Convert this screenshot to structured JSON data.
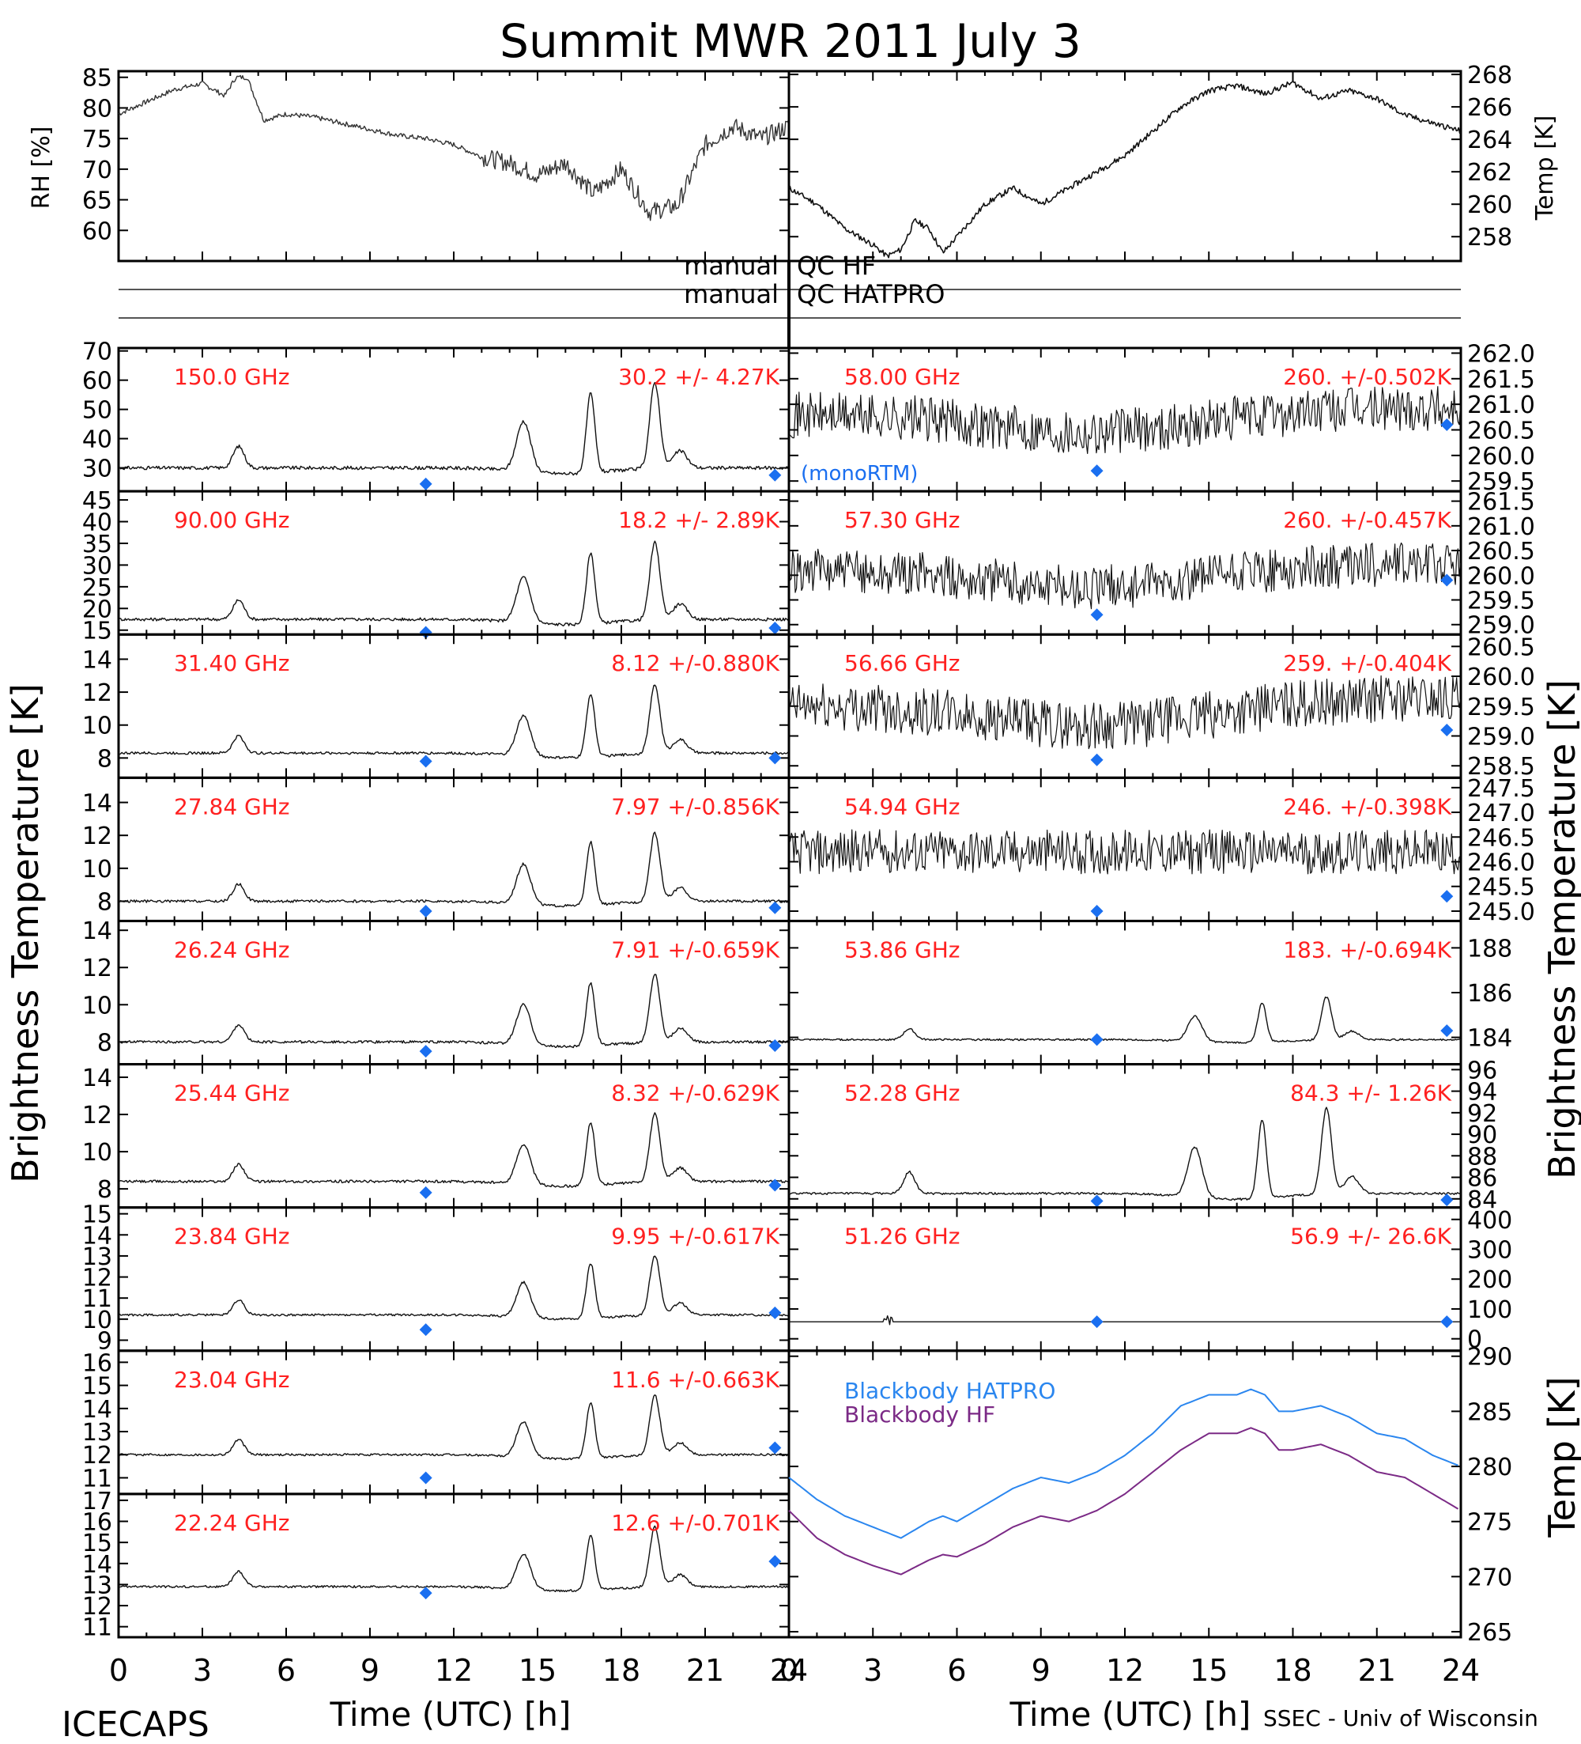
{
  "title": "Summit MWR 2011 July  3",
  "footer": {
    "left": "ICECAPS",
    "right": "SSEC - Univ of Wisconsin"
  },
  "colors": {
    "axis": "#000000",
    "data": "#000000",
    "freq_label": "#ff2020",
    "model_marker": "#1a6ff0",
    "bb_hatpro": "#2a86ef",
    "bb_hf": "#7b2a86"
  },
  "chart_data": [
    {
      "id": "rh",
      "type": "line",
      "ylabel": "RH [%]",
      "ylim": [
        55,
        86
      ],
      "yticks": [
        60,
        65,
        70,
        75,
        80,
        85
      ],
      "x": [
        0,
        1,
        2,
        3,
        3.8,
        4.2,
        4.6,
        5.2,
        6,
        7,
        8,
        9,
        10,
        11,
        12,
        13,
        14,
        15,
        16,
        17,
        18,
        19,
        20,
        21,
        22,
        23,
        24
      ],
      "y": [
        79,
        81,
        83,
        84,
        82,
        85,
        85,
        78,
        79,
        78.5,
        77.5,
        76.5,
        75.5,
        75,
        74,
        72,
        71,
        69,
        71,
        66,
        70,
        63,
        64,
        74,
        77,
        75,
        77
      ]
    },
    {
      "id": "temp_air",
      "type": "line",
      "ylabel": "Temp [K]",
      "ylim": [
        256.5,
        268.2
      ],
      "yticks": [
        258,
        260,
        262,
        264,
        266,
        268
      ],
      "x": [
        0,
        1,
        2,
        3,
        3.5,
        4,
        4.5,
        5,
        5.5,
        6,
        7,
        8,
        9,
        10,
        11,
        12,
        13,
        14,
        15,
        16,
        17,
        18,
        19,
        20,
        21,
        22,
        23,
        24
      ],
      "y": [
        261,
        260,
        258.5,
        257.5,
        256.8,
        257.2,
        259,
        258.5,
        257,
        258,
        260,
        261,
        260,
        261,
        262,
        263,
        264.5,
        266,
        267,
        267.3,
        266.8,
        267.5,
        266.5,
        267,
        266.5,
        265.5,
        265,
        264.5
      ]
    },
    {
      "id": "qc_bars",
      "type": "table",
      "labels": [
        "manual",
        "manual"
      ],
      "values": [
        "QC HF",
        "QC HATPRO"
      ]
    },
    {
      "id": "tb_150",
      "type": "line",
      "freq": "150.0 GHz",
      "stats": "30.2 +/-  4.27K",
      "ylim": [
        22,
        71
      ],
      "yticks": [
        30,
        40,
        50,
        60,
        70
      ],
      "baseline": 30,
      "amplitude": 1.0,
      "noise": 0.08,
      "model": [
        [
          11,
          24.5
        ],
        [
          23.5,
          27.5
        ]
      ],
      "legend_text": "(monoRTM)"
    },
    {
      "id": "tb_90",
      "type": "line",
      "freq": "90.00 GHz",
      "stats": "18.2 +/-  2.89K",
      "ylim": [
        14,
        47
      ],
      "yticks": [
        15,
        20,
        25,
        30,
        35,
        40,
        45
      ],
      "baseline": 17.5,
      "amplitude": 0.9,
      "noise": 0.07,
      "model": [
        [
          11,
          14.5
        ],
        [
          23.5,
          15.5
        ]
      ]
    },
    {
      "id": "tb_31",
      "type": "line",
      "freq": "31.40 GHz",
      "stats": "8.12 +/-0.880K",
      "ylim": [
        6.8,
        15.5
      ],
      "yticks": [
        8,
        10,
        12,
        14
      ],
      "baseline": 8.3,
      "amplitude": 0.8,
      "noise": 0.06,
      "model": [
        [
          11,
          7.8
        ],
        [
          23.5,
          8.0
        ]
      ]
    },
    {
      "id": "tb_27",
      "type": "line",
      "freq": "27.84 GHz",
      "stats": "7.97 +/-0.856K",
      "ylim": [
        6.8,
        15.5
      ],
      "yticks": [
        8,
        10,
        12,
        14
      ],
      "baseline": 8.0,
      "amplitude": 0.8,
      "noise": 0.06,
      "model": [
        [
          11,
          7.4
        ],
        [
          23.5,
          7.6
        ]
      ]
    },
    {
      "id": "tb_26",
      "type": "line",
      "freq": "26.24 GHz",
      "stats": "7.91 +/-0.659K",
      "ylim": [
        6.8,
        14.5
      ],
      "yticks": [
        8,
        10,
        12,
        14
      ],
      "baseline": 8.0,
      "amplitude": 0.8,
      "noise": 0.06,
      "model": [
        [
          11,
          7.5
        ],
        [
          23.5,
          7.8
        ]
      ]
    },
    {
      "id": "tb_25",
      "type": "line",
      "freq": "25.44 GHz",
      "stats": "8.32 +/-0.629K",
      "ylim": [
        7.0,
        14.7
      ],
      "yticks": [
        8,
        10,
        12,
        14
      ],
      "baseline": 8.4,
      "amplitude": 0.8,
      "noise": 0.06,
      "model": [
        [
          11,
          7.8
        ],
        [
          23.5,
          8.2
        ]
      ]
    },
    {
      "id": "tb_23_84",
      "type": "line",
      "freq": "23.84 GHz",
      "stats": "9.95 +/-0.617K",
      "ylim": [
        8.5,
        15.3
      ],
      "yticks": [
        9,
        10,
        11,
        12,
        13,
        14,
        15
      ],
      "baseline": 10.2,
      "amplitude": 0.7,
      "noise": 0.05,
      "model": [
        [
          11,
          9.5
        ],
        [
          23.5,
          10.3
        ]
      ]
    },
    {
      "id": "tb_23_04",
      "type": "line",
      "freq": "23.04 GHz",
      "stats": "11.6 +/-0.663K",
      "ylim": [
        10.3,
        16.5
      ],
      "yticks": [
        11,
        12,
        13,
        14,
        15,
        16
      ],
      "baseline": 12.0,
      "amplitude": 0.7,
      "noise": 0.05,
      "model": [
        [
          11,
          11.0
        ],
        [
          23.5,
          12.3
        ]
      ]
    },
    {
      "id": "tb_22",
      "type": "line",
      "freq": "22.24 GHz",
      "stats": "12.6 +/-0.701K",
      "ylim": [
        10.5,
        17.3
      ],
      "yticks": [
        11,
        12,
        13,
        14,
        15,
        16,
        17
      ],
      "baseline": 12.9,
      "amplitude": 0.7,
      "noise": 0.05,
      "model": [
        [
          11,
          12.6
        ],
        [
          23.5,
          14.1
        ]
      ]
    },
    {
      "id": "tb_58",
      "type": "scatter",
      "freq": "58.00 GHz",
      "stats": "260. +/-0.502K",
      "ylim": [
        259.3,
        262.1
      ],
      "yticks": [
        259.5,
        260.0,
        260.5,
        261.0,
        261.5,
        262.0
      ],
      "baseline": 260.8,
      "trend": "dip",
      "noise": 0.45,
      "model": [
        [
          11,
          259.7
        ],
        [
          23.5,
          260.6
        ]
      ]
    },
    {
      "id": "tb_57_30",
      "type": "scatter",
      "freq": "57.30 GHz",
      "stats": "260. +/-0.457K",
      "ylim": [
        258.8,
        261.7
      ],
      "yticks": [
        259.0,
        259.5,
        260.0,
        260.5,
        261.0,
        261.5
      ],
      "baseline": 260.1,
      "trend": "dip",
      "noise": 0.45,
      "model": [
        [
          11,
          259.2
        ],
        [
          23.5,
          259.9
        ]
      ]
    },
    {
      "id": "tb_56_66",
      "type": "scatter",
      "freq": "56.66 GHz",
      "stats": "259. +/-0.404K",
      "ylim": [
        258.3,
        260.7
      ],
      "yticks": [
        258.5,
        259.0,
        259.5,
        260.0,
        260.5
      ],
      "baseline": 259.5,
      "trend": "dip",
      "noise": 0.4,
      "model": [
        [
          11,
          258.6
        ],
        [
          23.5,
          259.1
        ]
      ]
    },
    {
      "id": "tb_54_94",
      "type": "scatter",
      "freq": "54.94 GHz",
      "stats": "246. +/-0.398K",
      "ylim": [
        244.8,
        247.7
      ],
      "yticks": [
        245.0,
        245.5,
        246.0,
        246.5,
        247.0,
        247.5
      ],
      "baseline": 246.2,
      "trend": "flat",
      "noise": 0.45,
      "model": [
        [
          11,
          245.0
        ],
        [
          23.5,
          245.3
        ]
      ]
    },
    {
      "id": "tb_53_86",
      "type": "line",
      "freq": "53.86 GHz",
      "stats": "183. +/-0.694K",
      "ylim": [
        182.8,
        189.2
      ],
      "yticks": [
        184,
        186,
        188
      ],
      "baseline": 183.9,
      "amplitude": 0.5,
      "noise": 0.04,
      "model": [
        [
          11,
          183.9
        ],
        [
          23.5,
          184.3
        ]
      ]
    },
    {
      "id": "tb_52_28",
      "type": "line",
      "freq": "52.28 GHz",
      "stats": "84.3 +/-  1.26K",
      "ylim": [
        83.2,
        96.5
      ],
      "yticks": [
        84,
        86,
        88,
        90,
        92,
        94,
        96
      ],
      "baseline": 84.5,
      "amplitude": 1.0,
      "noise": 0.05,
      "model": [
        [
          11,
          83.8
        ],
        [
          23.5,
          83.9
        ]
      ]
    },
    {
      "id": "tb_51_26",
      "type": "line",
      "freq": "51.26 GHz",
      "stats": "56.9 +/-  26.6K",
      "ylim": [
        -40,
        440
      ],
      "yticks": [
        0,
        100,
        200,
        300,
        400
      ],
      "baseline": 57,
      "amplitude": 0,
      "noise": 0,
      "model": [
        [
          11,
          57
        ],
        [
          23.5,
          57
        ]
      ]
    },
    {
      "id": "blackbody",
      "type": "line",
      "ylabel": "Temp [K]",
      "ylim": [
        264.5,
        290.5
      ],
      "yticks": [
        265,
        270,
        275,
        280,
        285,
        290
      ],
      "x": [
        0,
        1,
        2,
        3,
        4,
        5,
        5.5,
        6,
        7,
        8,
        9,
        10,
        11,
        12,
        13,
        14,
        15,
        16,
        16.5,
        17,
        17.5,
        18,
        19,
        20,
        21,
        22,
        23,
        24
      ],
      "series": [
        {
          "name": "Blackbody HATPRO",
          "values": [
            279,
            277,
            275.5,
            274.5,
            273.5,
            275,
            275.5,
            275,
            276.5,
            278,
            279,
            278.5,
            279.5,
            281,
            283,
            285.5,
            286.5,
            286.5,
            287,
            286.5,
            285,
            285,
            285.5,
            284.5,
            283,
            282.5,
            281,
            280
          ]
        },
        {
          "name": "Blackbody HF",
          "values": [
            276,
            273.5,
            272,
            271,
            270.2,
            271.5,
            272,
            271.8,
            273,
            274.5,
            275.5,
            275,
            276,
            277.5,
            279.5,
            281.5,
            283,
            283,
            283.5,
            283,
            281.5,
            281.5,
            282,
            281,
            279.5,
            279,
            277.5,
            276
          ]
        }
      ]
    }
  ],
  "axes": {
    "left_ylabel": "Brightness Temperature [K]",
    "right_ylabel": "Brightness Temperature [K]",
    "xlabel": "Time (UTC) [h]",
    "xticks": [
      0,
      3,
      6,
      9,
      12,
      15,
      18,
      21,
      24
    ],
    "xlim": [
      0,
      24
    ]
  }
}
